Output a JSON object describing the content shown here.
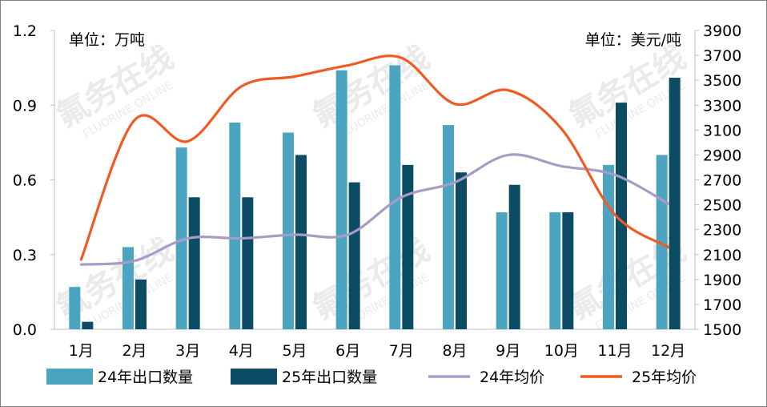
{
  "chart_data": {
    "type": "bar+line",
    "categories": [
      "1月",
      "2月",
      "3月",
      "4月",
      "5月",
      "6月",
      "7月",
      "8月",
      "9月",
      "10月",
      "11月",
      "12月"
    ],
    "left_unit": "单位：万吨",
    "right_unit": "单位：美元/吨",
    "left_axis": {
      "ticks": [
        "0.0",
        "0.3",
        "0.6",
        "0.9",
        "1.2"
      ],
      "min": 0,
      "max": 1.2
    },
    "right_axis": {
      "ticks": [
        "1500",
        "1700",
        "1900",
        "2100",
        "2300",
        "2500",
        "2700",
        "2900",
        "3100",
        "3300",
        "3500",
        "3700",
        "3900"
      ],
      "min": 1500,
      "max": 3900
    },
    "series": [
      {
        "name": "24年出口数量",
        "type": "bar",
        "axis": "left",
        "color": "#4BA5C1",
        "values": [
          0.17,
          0.33,
          0.73,
          0.83,
          0.79,
          1.04,
          1.06,
          0.82,
          0.47,
          0.47,
          0.66,
          0.7
        ]
      },
      {
        "name": "25年出口数量",
        "type": "bar",
        "axis": "left",
        "color": "#0B4C64",
        "values": [
          0.03,
          0.2,
          0.53,
          0.53,
          0.7,
          0.59,
          0.66,
          0.63,
          0.58,
          0.47,
          0.91,
          1.01
        ]
      },
      {
        "name": "24年均价",
        "type": "line",
        "axis": "right",
        "color": "#A89CC6",
        "values": [
          2020,
          2050,
          2230,
          2230,
          2260,
          2260,
          2560,
          2680,
          2900,
          2810,
          2740,
          2510
        ]
      },
      {
        "name": "25年均价",
        "type": "line",
        "axis": "right",
        "color": "#F05A23",
        "values": [
          2060,
          3180,
          3010,
          3450,
          3530,
          3620,
          3680,
          3310,
          3420,
          3110,
          2420,
          2160
        ]
      }
    ]
  },
  "watermark": {
    "cn": "氟务在线",
    "en": "FLUORINE ONLINE"
  }
}
